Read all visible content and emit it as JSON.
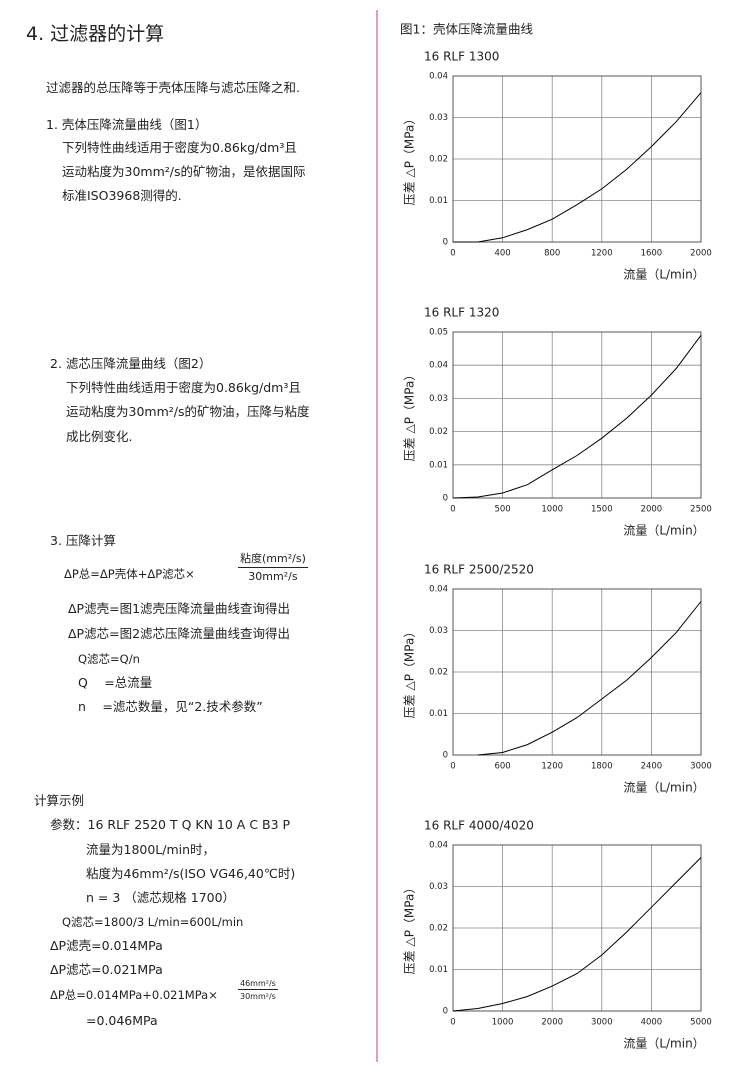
{
  "document": {
    "title": "4. 过滤器的计算",
    "intro": "过滤器的总压降等于壳体压降与滤芯压降之和.",
    "section1": {
      "heading": "1. 壳体压降流量曲线（图1）",
      "lines": [
        "下列特性曲线适用于密度为0.86kg/dm³且",
        "运动粘度为30mm²/s的矿物油，是依据国际",
        "标准ISO3968测得的."
      ]
    },
    "section2": {
      "heading": "2. 滤芯压降流量曲线（图2）",
      "lines": [
        "下列特性曲线适用于密度为0.86kg/dm³且",
        "运动粘度为30mm²/s的矿物油，压降与粘度",
        "成比例变化."
      ]
    },
    "section3": {
      "heading": "3. 压降计算",
      "formula": {
        "lhs": "ΔP总=ΔP壳体+ΔP滤芯×",
        "numerator": "粘度(mm²/s)",
        "denominator": "30mm²/s"
      },
      "lines": [
        "ΔP滤壳=图1滤壳压降流量曲线查询得出",
        "ΔP滤芯=图2滤芯压降流量曲线查询得出",
        "Q滤芯=Q/n",
        "Q　 =总流量",
        "n　 =滤芯数量，见“2.技术参数”"
      ]
    },
    "example": {
      "heading": "计算示例",
      "lines": [
        "参数：16 RLF 2520 T Q KN 10 A C B3 P",
        "流量为1800L/min时，",
        "粘度为46mm²/s(ISO VG46,40℃时)",
        "n = 3 （滤芯规格 1700）",
        "Q滤芯=1800/3 L/min=600L/min",
        "ΔP滤壳=0.014MPa",
        "ΔP滤芯=0.021MPa"
      ],
      "formula": {
        "lhs": "ΔP总=0.014MPa+0.021MPa×",
        "numerator": "46mm²/s",
        "denominator": "30mm²/s"
      },
      "result": "=0.046MPa"
    },
    "figure_caption": "图1：壳体压降流量曲线"
  },
  "chart_data": [
    {
      "type": "line",
      "title": "16 RLF 1300",
      "x_label": "流量（L/min）",
      "y_label": "压差 △P（MPa）",
      "x": [
        0,
        200,
        400,
        600,
        800,
        1000,
        1200,
        1400,
        1600,
        1800,
        2000
      ],
      "values": [
        0,
        0,
        0.001,
        0.003,
        0.0055,
        0.009,
        0.0128,
        0.0175,
        0.023,
        0.029,
        0.036
      ],
      "color": "#000000",
      "xlim": [
        0,
        2000
      ],
      "xticks": [
        0,
        400,
        800,
        1200,
        1600,
        2000
      ],
      "ylim": [
        0,
        0.04
      ],
      "yticks": [
        0,
        0.01,
        0.02,
        0.03,
        0.04
      ],
      "grid": true
    },
    {
      "type": "line",
      "title": "16 RLF 1320",
      "x_label": "流量（L/min）",
      "y_label": "压差 △P（MPa）",
      "x": [
        0,
        250,
        500,
        750,
        1000,
        1250,
        1500,
        1750,
        2000,
        2250,
        2500
      ],
      "values": [
        0,
        0.0003,
        0.0015,
        0.004,
        0.0085,
        0.0128,
        0.018,
        0.024,
        0.031,
        0.039,
        0.049
      ],
      "color": "#000000",
      "xlim": [
        0,
        2500
      ],
      "xticks": [
        0,
        500,
        1000,
        1500,
        2000,
        2500
      ],
      "ylim": [
        0,
        0.05
      ],
      "yticks": [
        0,
        0.01,
        0.02,
        0.03,
        0.04,
        0.05
      ],
      "grid": true
    },
    {
      "type": "line",
      "title": "16 RLF 2500/2520",
      "x_label": "流量（L/min）",
      "y_label": "压差 △P（MPa）",
      "x": [
        300,
        600,
        900,
        1200,
        1500,
        1800,
        2100,
        2400,
        2700,
        3000
      ],
      "values": [
        0,
        0.0006,
        0.0025,
        0.0055,
        0.009,
        0.0135,
        0.018,
        0.0235,
        0.0295,
        0.037
      ],
      "color": "#000000",
      "xlim": [
        0,
        3000
      ],
      "xticks": [
        0,
        600,
        1200,
        1800,
        2400,
        3000
      ],
      "ylim": [
        0,
        0.04
      ],
      "yticks": [
        0,
        0.01,
        0.02,
        0.03,
        0.04
      ],
      "grid": true
    },
    {
      "type": "line",
      "title": "16 RLF 4000/4020",
      "x_label": "流量（L/min）",
      "y_label": "压差 △P（MPa）",
      "x": [
        0,
        500,
        1000,
        1500,
        2000,
        2500,
        3000,
        3500,
        4000,
        4500,
        5000
      ],
      "values": [
        0,
        0.0006,
        0.0018,
        0.0035,
        0.006,
        0.009,
        0.0135,
        0.019,
        0.025,
        0.031,
        0.037
      ],
      "color": "#000000",
      "xlim": [
        0,
        5000
      ],
      "xticks": [
        0,
        1000,
        2000,
        3000,
        4000,
        5000
      ],
      "ylim": [
        0,
        0.04
      ],
      "yticks": [
        0,
        0.01,
        0.02,
        0.03,
        0.04
      ],
      "grid": true
    }
  ]
}
